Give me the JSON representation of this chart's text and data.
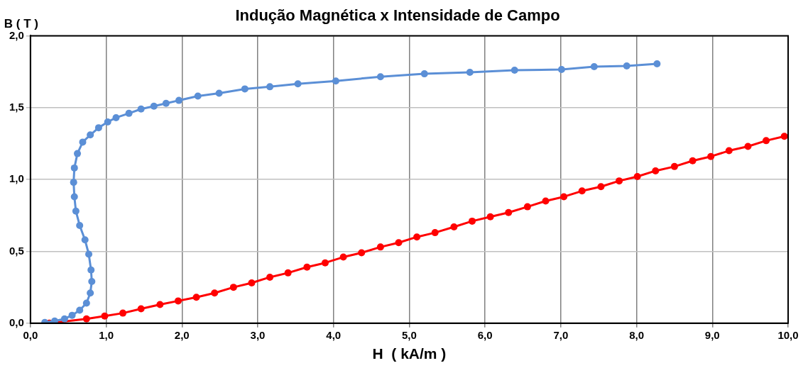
{
  "chart_data": {
    "type": "line",
    "title": "Indução Magnética x Intensidade de Campo",
    "xlabel": "H  ( kA/m )",
    "ylabel": "B ( T )",
    "xlim": [
      0,
      10
    ],
    "ylim": [
      0,
      2
    ],
    "xticks": [
      {
        "value": 0,
        "label": "0,0"
      },
      {
        "value": 1,
        "label": "1,0"
      },
      {
        "value": 2,
        "label": "2,0"
      },
      {
        "value": 3,
        "label": "3,0"
      },
      {
        "value": 4,
        "label": "4,0"
      },
      {
        "value": 5,
        "label": "5,0"
      },
      {
        "value": 6,
        "label": "6,0"
      },
      {
        "value": 7,
        "label": "7,0"
      },
      {
        "value": 8,
        "label": "8,0"
      },
      {
        "value": 9,
        "label": "9,0"
      },
      {
        "value": 10,
        "label": "10,0"
      }
    ],
    "yticks": [
      {
        "value": 0,
        "label": "0,0"
      },
      {
        "value": 0.5,
        "label": "0,5"
      },
      {
        "value": 1,
        "label": "1,0"
      },
      {
        "value": 1.5,
        "label": "1,5"
      },
      {
        "value": 2,
        "label": "2,0"
      }
    ],
    "grid": true,
    "legend": false,
    "marker": "circle",
    "line_style": "solid",
    "series": [
      {
        "color": "#5b8fd6",
        "x": [
          0.19,
          0.32,
          0.45,
          0.55,
          0.65,
          0.74,
          0.79,
          0.81,
          0.8,
          0.77,
          0.72,
          0.65,
          0.6,
          0.58,
          0.57,
          0.58,
          0.62,
          0.69,
          0.79,
          0.9,
          1.02,
          1.13,
          1.3,
          1.46,
          1.63,
          1.79,
          1.96,
          2.21,
          2.49,
          2.83,
          3.16,
          3.53,
          4.03,
          4.62,
          5.2,
          5.8,
          6.39,
          7.01,
          7.44,
          7.87,
          8.27
        ],
        "values": [
          0.005,
          0.015,
          0.03,
          0.055,
          0.09,
          0.14,
          0.21,
          0.29,
          0.37,
          0.48,
          0.58,
          0.68,
          0.78,
          0.88,
          0.98,
          1.08,
          1.18,
          1.26,
          1.31,
          1.36,
          1.4,
          1.43,
          1.46,
          1.49,
          1.51,
          1.53,
          1.55,
          1.58,
          1.6,
          1.63,
          1.645,
          1.665,
          1.685,
          1.715,
          1.735,
          1.745,
          1.76,
          1.765,
          1.785,
          1.79,
          1.805
        ]
      },
      {
        "color": "#ff0000",
        "x": [
          0.25,
          0.49,
          0.74,
          0.98,
          1.22,
          1.46,
          1.71,
          1.95,
          2.19,
          2.43,
          2.68,
          2.92,
          3.16,
          3.4,
          3.65,
          3.89,
          4.13,
          4.37,
          4.62,
          4.86,
          5.1,
          5.34,
          5.59,
          5.83,
          6.07,
          6.31,
          6.56,
          6.8,
          7.04,
          7.28,
          7.53,
          7.77,
          8.01,
          8.25,
          8.5,
          8.74,
          8.98,
          9.22,
          9.47,
          9.71,
          9.95
        ],
        "values": [
          0,
          null,
          0.03,
          0.05,
          0.07,
          0.1,
          0.13,
          0.155,
          0.18,
          0.21,
          0.25,
          0.28,
          0.32,
          0.35,
          0.39,
          0.42,
          0.46,
          0.49,
          0.53,
          0.56,
          0.6,
          0.63,
          0.67,
          0.71,
          0.74,
          0.77,
          0.81,
          0.85,
          0.88,
          0.92,
          0.95,
          0.99,
          1.02,
          1.06,
          1.09,
          1.13,
          1.16,
          1.2,
          1.23,
          1.27,
          1.3
        ]
      }
    ]
  }
}
